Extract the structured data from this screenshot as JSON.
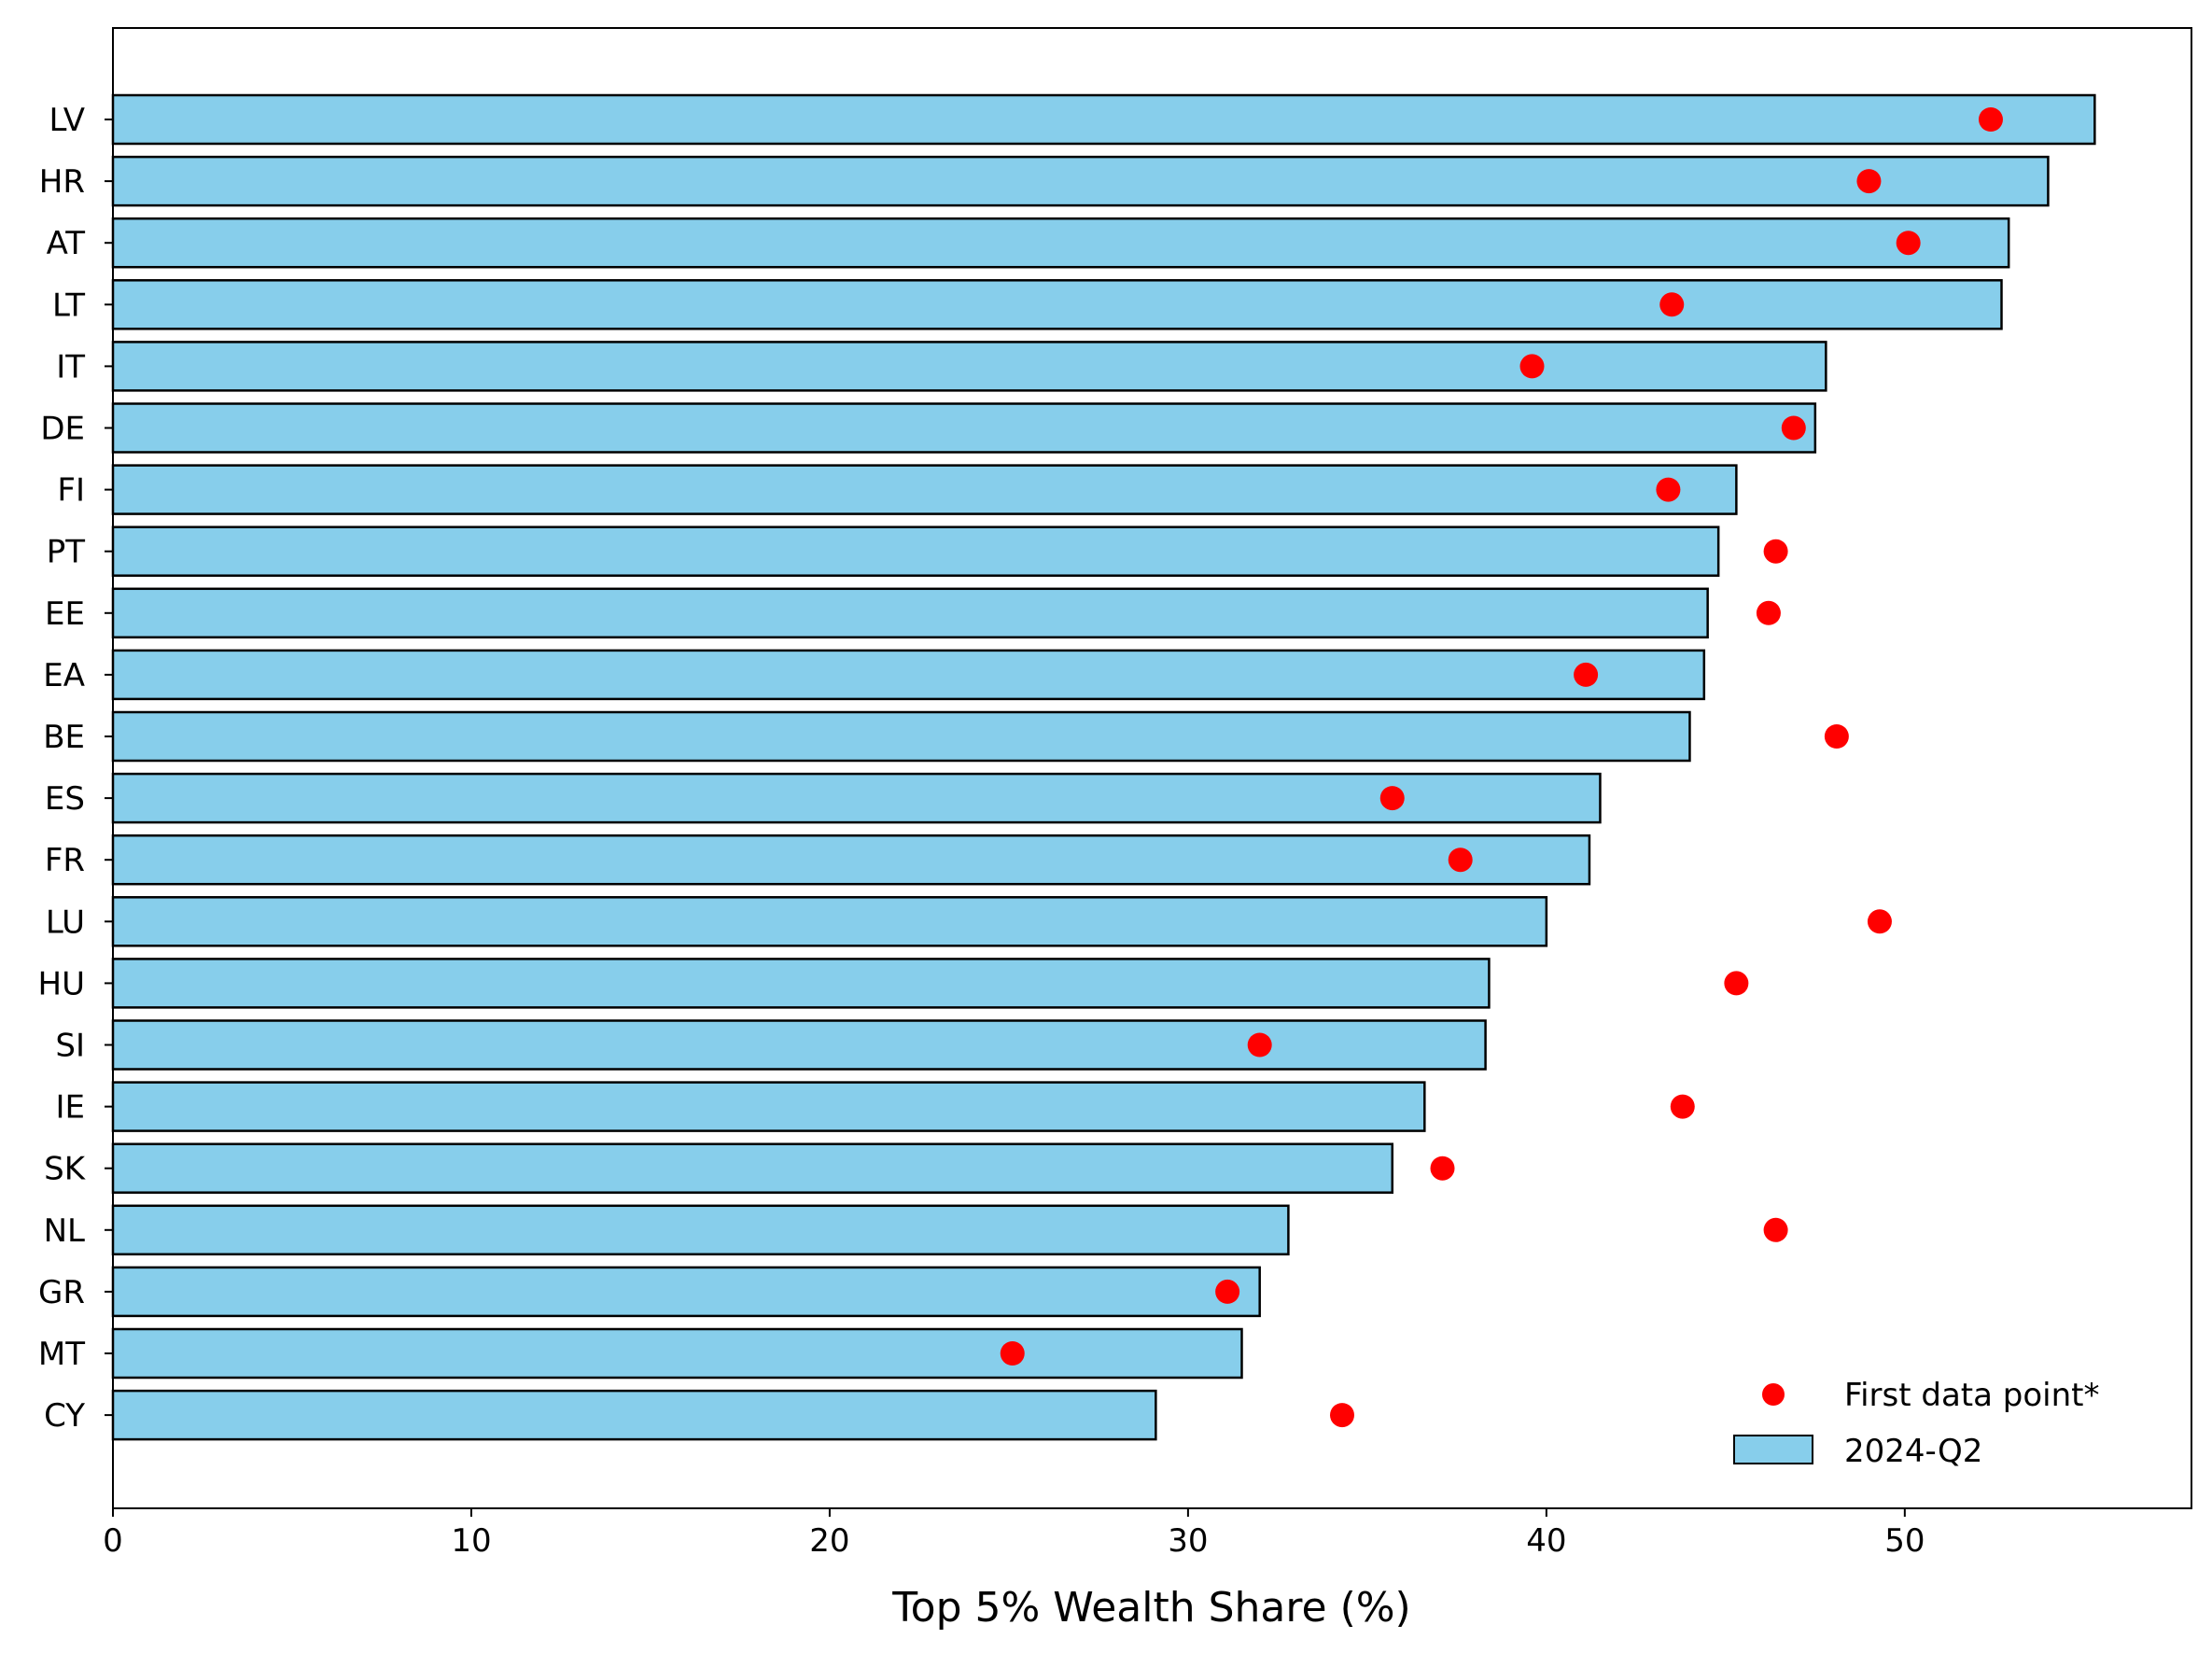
{
  "chart_data": {
    "type": "bar",
    "orientation": "horizontal",
    "title": "",
    "xlabel": "Top 5% Wealth Share (%)",
    "ylabel": "",
    "xlim": [
      0,
      58
    ],
    "x_ticks": [
      0,
      10,
      20,
      30,
      40,
      50
    ],
    "grid": false,
    "legend_position": "bottom-right",
    "categories": [
      "LV",
      "HR",
      "AT",
      "LT",
      "IT",
      "DE",
      "FI",
      "PT",
      "EE",
      "EA",
      "BE",
      "ES",
      "FR",
      "LU",
      "HU",
      "SI",
      "IE",
      "SK",
      "NL",
      "GR",
      "MT",
      "CY"
    ],
    "series": [
      {
        "name": "2024-Q2",
        "kind": "bar",
        "color": "#87CEEB",
        "edge_color": "#000000",
        "values": [
          55.3,
          54.0,
          52.9,
          52.7,
          47.8,
          47.5,
          45.3,
          44.8,
          44.5,
          44.4,
          44.0,
          41.5,
          41.2,
          40.0,
          38.4,
          38.3,
          36.6,
          35.7,
          32.8,
          32.0,
          31.5,
          29.1
        ]
      },
      {
        "name": "First data point*",
        "kind": "scatter",
        "color": "#FF0000",
        "values": [
          52.4,
          49.0,
          50.1,
          43.5,
          39.6,
          46.9,
          43.4,
          46.4,
          46.2,
          41.1,
          48.1,
          35.7,
          37.6,
          49.3,
          45.3,
          32.0,
          43.8,
          37.1,
          46.4,
          31.1,
          25.1,
          34.3
        ]
      }
    ]
  }
}
